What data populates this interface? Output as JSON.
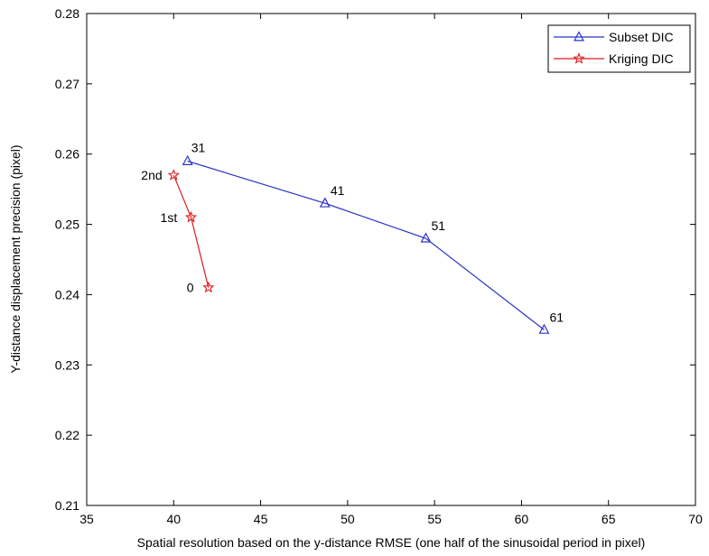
{
  "chart_data": {
    "type": "line",
    "title": "",
    "xlabel": "Spatial resolution based on the y-distance RMSE (one half of the sinusoidal period in pixel)",
    "ylabel": "Y-distance displacement precision (pixel)",
    "xlim": [
      35,
      70
    ],
    "ylim": [
      0.21,
      0.28
    ],
    "xticks": [
      35,
      40,
      45,
      50,
      55,
      60,
      65,
      70
    ],
    "yticks": [
      0.21,
      0.22,
      0.23,
      0.24,
      0.25,
      0.26,
      0.27,
      0.28
    ],
    "xtick_labels": [
      "35",
      "40",
      "45",
      "50",
      "55",
      "60",
      "65",
      "70"
    ],
    "ytick_labels": [
      "0.21",
      "0.22",
      "0.23",
      "0.24",
      "0.25",
      "0.26",
      "0.27",
      "0.28"
    ],
    "grid": false,
    "legend_position": "top-right",
    "series": [
      {
        "name": "Subset DIC",
        "color": "#2b35c4",
        "marker": "triangle",
        "x": [
          40.8,
          48.7,
          54.5,
          61.3
        ],
        "y": [
          0.259,
          0.253,
          0.248,
          0.235
        ],
        "labels": [
          "31",
          "41",
          "51",
          "61"
        ]
      },
      {
        "name": "Kriging DIC",
        "color": "#e0191b",
        "marker": "star",
        "x": [
          40.0,
          41.0,
          42.0
        ],
        "y": [
          0.257,
          0.251,
          0.241
        ],
        "labels": [
          "2nd",
          "1st",
          "0"
        ]
      }
    ]
  }
}
